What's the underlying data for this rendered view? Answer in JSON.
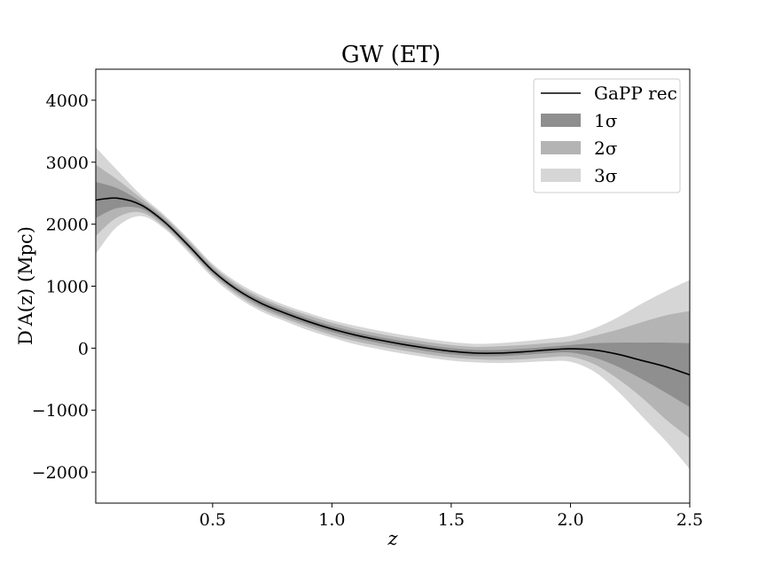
{
  "chart_data": {
    "type": "line",
    "title": "GW (ET)",
    "xlabel": "z",
    "ylabel": "D′A(z) (Mpc)",
    "xlim": [
      0.01,
      2.5
    ],
    "ylim": [
      -2500,
      4500
    ],
    "xticks": [
      0.5,
      1.0,
      1.5,
      2.0,
      2.5
    ],
    "xtick_labels": [
      "0.5",
      "1.0",
      "1.5",
      "2.0",
      "2.5"
    ],
    "yticks": [
      -2000,
      -1000,
      0,
      1000,
      2000,
      3000,
      4000
    ],
    "ytick_labels": [
      "−2000",
      "−1000",
      "0",
      "1000",
      "2000",
      "3000",
      "4000"
    ],
    "grid": false,
    "legend_position": "top-right",
    "colors": {
      "line": "#000000",
      "sigma1": "#8f8f8f",
      "sigma2": "#b4b4b4",
      "sigma3": "#d6d6d6"
    },
    "x": [
      0.01,
      0.1,
      0.2,
      0.3,
      0.4,
      0.5,
      0.6,
      0.7,
      0.8,
      0.9,
      1.0,
      1.1,
      1.2,
      1.3,
      1.4,
      1.5,
      1.6,
      1.7,
      1.8,
      1.9,
      2.0,
      2.1,
      2.2,
      2.3,
      2.4,
      2.5
    ],
    "series": [
      {
        "name": "GaPP rec",
        "values": [
          2390,
          2420,
          2310,
          2030,
          1650,
          1250,
          950,
          730,
          570,
          430,
          310,
          210,
          130,
          60,
          0,
          -50,
          -80,
          -80,
          -60,
          -30,
          -10,
          -30,
          -100,
          -200,
          -300,
          -430
        ]
      }
    ],
    "bands": [
      {
        "name": "3σ",
        "upper": [
          3240,
          2870,
          2470,
          2140,
          1760,
          1360,
          1070,
          860,
          700,
          570,
          450,
          360,
          280,
          210,
          150,
          100,
          70,
          80,
          110,
          150,
          200,
          320,
          500,
          720,
          920,
          1100
        ],
        "lower": [
          1520,
          1960,
          2130,
          1920,
          1540,
          1140,
          830,
          600,
          440,
          290,
          170,
          60,
          -20,
          -90,
          -150,
          -200,
          -230,
          -240,
          -230,
          -210,
          -220,
          -380,
          -700,
          -1100,
          -1500,
          -1950
        ]
      },
      {
        "name": "2σ",
        "upper": [
          2960,
          2720,
          2420,
          2110,
          1730,
          1330,
          1030,
          820,
          660,
          530,
          410,
          310,
          230,
          160,
          100,
          50,
          20,
          30,
          50,
          80,
          110,
          200,
          300,
          420,
          530,
          600
        ]
      },
      {
        "name": "1σ",
        "upper": [
          2680,
          2580,
          2360,
          2070,
          1690,
          1290,
          990,
          780,
          620,
          480,
          360,
          260,
          180,
          110,
          50,
          0,
          -30,
          -30,
          -10,
          20,
          50,
          80,
          90,
          90,
          90,
          80
        ]
      }
    ],
    "band_lower_2s": [
      1810,
      2110,
      2190,
      1950,
      1580,
      1180,
      870,
      640,
      480,
      340,
      210,
      110,
      30,
      -40,
      -100,
      -150,
      -180,
      -190,
      -180,
      -150,
      -140,
      -260,
      -500,
      -800,
      -1150,
      -1450
    ],
    "band_lower_1s": [
      2100,
      2260,
      2250,
      1990,
      1610,
      1210,
      910,
      680,
      520,
      380,
      260,
      160,
      80,
      10,
      -50,
      -100,
      -130,
      -130,
      -110,
      -80,
      -70,
      -150,
      -300,
      -500,
      -720,
      -950
    ],
    "legend": [
      "GaPP rec",
      "1σ",
      "2σ",
      "3σ"
    ]
  }
}
